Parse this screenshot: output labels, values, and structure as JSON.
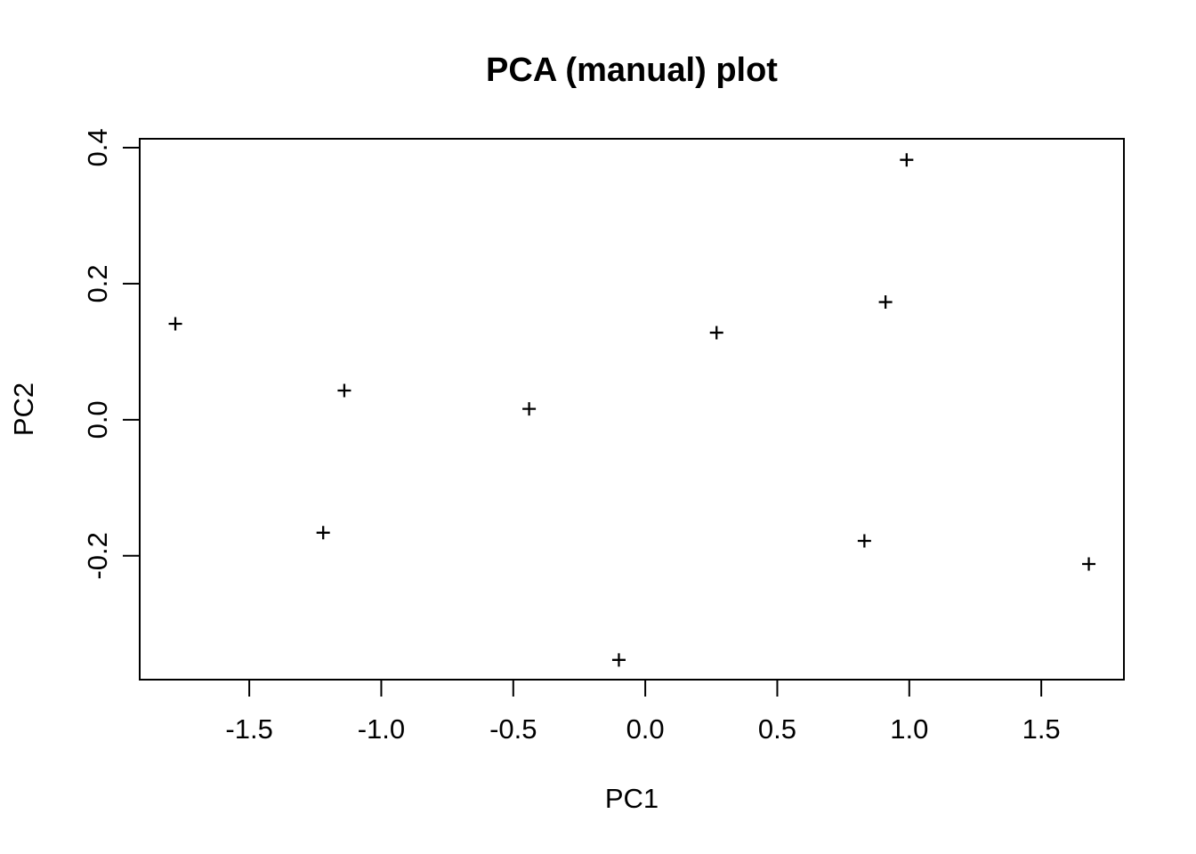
{
  "chart_data": {
    "type": "scatter",
    "title": "PCA (manual) plot",
    "xlabel": "PC1",
    "ylabel": "PC2",
    "xlim": [
      -1.915,
      1.813
    ],
    "ylim": [
      -0.382,
      0.413
    ],
    "x_ticks": [
      -1.5,
      -1.0,
      -0.5,
      0.0,
      0.5,
      1.0,
      1.5
    ],
    "x_tick_labels": [
      "-1.5",
      "-1.0",
      "-0.5",
      "0.0",
      "0.5",
      "1.0",
      "1.5"
    ],
    "y_ticks": [
      -0.2,
      0.0,
      0.2,
      0.4
    ],
    "y_tick_labels": [
      "-0.2",
      "0.0",
      "0.2",
      "0.4"
    ],
    "grid": false,
    "legend": null,
    "marker": "plus",
    "colors": {
      "background": "#ffffff",
      "foreground": "#000000"
    },
    "points": [
      [
        -1.78,
        0.141
      ],
      [
        -1.22,
        -0.166
      ],
      [
        -1.14,
        0.043
      ],
      [
        -0.44,
        0.016
      ],
      [
        -0.1,
        -0.353
      ],
      [
        0.27,
        0.128
      ],
      [
        0.83,
        -0.178
      ],
      [
        0.91,
        0.173
      ],
      [
        0.99,
        0.382
      ],
      [
        1.68,
        -0.212
      ]
    ]
  }
}
